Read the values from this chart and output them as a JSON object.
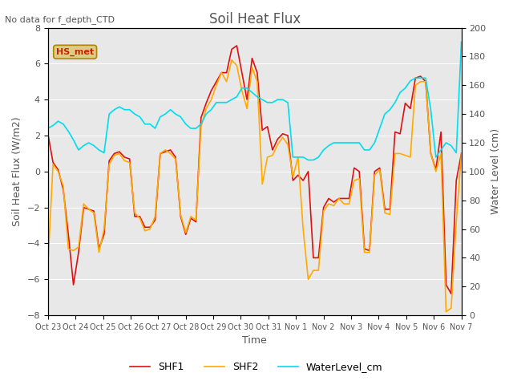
{
  "title": "Soil Heat Flux",
  "subtitle": "No data for f_depth_CTD",
  "xlabel": "Time",
  "ylabel_left": "Soil Heat Flux (W/m2)",
  "ylabel_right": "Water Level (cm)",
  "ylim_left": [
    -8,
    8
  ],
  "ylim_right": [
    0,
    200
  ],
  "yticks_left": [
    -8,
    -6,
    -4,
    -2,
    0,
    2,
    4,
    6,
    8
  ],
  "yticks_right": [
    0,
    20,
    40,
    60,
    80,
    100,
    120,
    140,
    160,
    180,
    200
  ],
  "xtick_labels": [
    "Oct 23",
    "Oct 24",
    "Oct 25",
    "Oct 26",
    "Oct 27",
    "Oct 28",
    "Oct 29",
    "Oct 30",
    "Oct 31",
    "Nov 1",
    "Nov 2",
    "Nov 3",
    "Nov 4",
    "Nov 5",
    "Nov 6",
    "Nov 7"
  ],
  "color_shf1": "#dd1111",
  "color_shf2": "#ffaa00",
  "color_water": "#00ddee",
  "color_bg": "#e8e8e8",
  "color_annotation_box": "#ddcc88",
  "annotation_text": "HS_met",
  "legend_entries": [
    "SHF1",
    "SHF2",
    "WaterLevel_cm"
  ],
  "shf1": [
    2.1,
    0.5,
    0.1,
    -1.0,
    -3.5,
    -6.3,
    -4.5,
    -2.0,
    -2.1,
    -2.2,
    -4.3,
    -3.5,
    0.6,
    1.0,
    1.1,
    0.8,
    0.7,
    -2.5,
    -2.5,
    -3.1,
    -3.1,
    -2.7,
    1.0,
    1.1,
    1.2,
    0.8,
    -2.5,
    -3.5,
    -2.6,
    -2.8,
    3.0,
    3.8,
    4.5,
    5.0,
    5.5,
    5.5,
    6.8,
    7.0,
    5.5,
    4.0,
    6.3,
    5.5,
    2.3,
    2.5,
    1.2,
    1.8,
    2.1,
    2.0,
    -0.5,
    -0.2,
    -0.5,
    0.0,
    -4.8,
    -4.8,
    -2.0,
    -1.5,
    -1.7,
    -1.5,
    -1.5,
    -1.5,
    0.2,
    0.0,
    -4.3,
    -4.4,
    0.0,
    0.2,
    -2.1,
    -2.1,
    2.2,
    2.1,
    3.8,
    3.5,
    5.2,
    5.3,
    5.0,
    1.0,
    0.1,
    2.2,
    -6.3,
    -6.8,
    -0.5,
    1.0
  ],
  "shf2": [
    -5.2,
    0.4,
    0.0,
    -0.8,
    -4.3,
    -4.4,
    -4.2,
    -1.8,
    -2.1,
    -2.3,
    -4.5,
    -3.2,
    0.4,
    0.9,
    1.0,
    0.6,
    0.5,
    -2.3,
    -2.6,
    -3.3,
    -3.2,
    -2.5,
    1.0,
    1.2,
    1.0,
    0.7,
    -2.4,
    -3.4,
    -2.5,
    -2.7,
    2.5,
    3.5,
    4.0,
    4.8,
    5.5,
    5.0,
    6.2,
    5.9,
    4.5,
    3.5,
    5.8,
    5.0,
    -0.7,
    0.8,
    0.9,
    1.5,
    1.9,
    1.5,
    -0.3,
    0.8,
    -3.2,
    -6.0,
    -5.5,
    -5.5,
    -2.2,
    -1.8,
    -1.9,
    -1.5,
    -1.8,
    -1.8,
    -0.5,
    -0.4,
    -4.5,
    -4.5,
    -0.2,
    0.1,
    -2.3,
    -2.4,
    1.0,
    1.0,
    0.9,
    0.8,
    4.8,
    5.0,
    5.0,
    1.0,
    0.0,
    1.0,
    -7.8,
    -7.6,
    -2.8,
    1.0
  ],
  "water": [
    130,
    132,
    135,
    133,
    128,
    122,
    115,
    118,
    120,
    118,
    115,
    113,
    140,
    143,
    145,
    143,
    143,
    140,
    138,
    133,
    133,
    130,
    138,
    140,
    143,
    140,
    138,
    133,
    130,
    130,
    133,
    140,
    143,
    148,
    148,
    148,
    150,
    152,
    158,
    158,
    155,
    152,
    150,
    148,
    148,
    150,
    150,
    148,
    110,
    110,
    110,
    108,
    108,
    110,
    115,
    118,
    120,
    120,
    120,
    120,
    120,
    120,
    115,
    115,
    120,
    130,
    140,
    143,
    148,
    155,
    158,
    163,
    165,
    165,
    165,
    143,
    110,
    115,
    120,
    118,
    113,
    190
  ]
}
